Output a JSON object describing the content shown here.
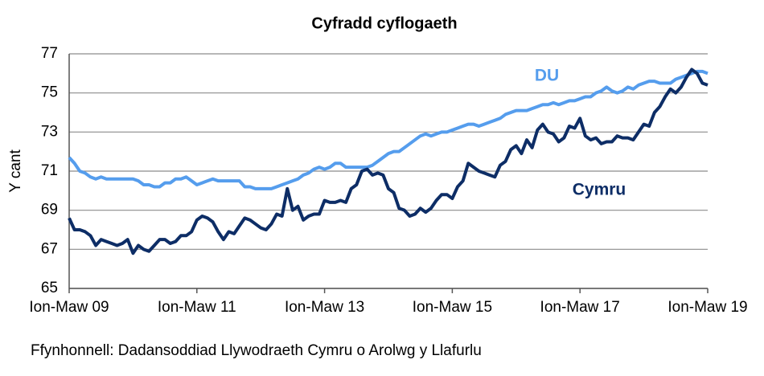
{
  "chart_data": {
    "type": "line",
    "title": "Cyfradd cyflogaeth",
    "y_label": "Y cant",
    "source": "Ffynhonnell: Dadansoddiad Llywodraeth Cymru o Arolwg y Llafurlu",
    "categories": [
      "Ion-Maw 09",
      null,
      null,
      null,
      null,
      null,
      null,
      null,
      null,
      null,
      null,
      null,
      null,
      null,
      null,
      null,
      null,
      null,
      null,
      null,
      null,
      null,
      null,
      null,
      "Ion-Maw 11",
      null,
      null,
      null,
      null,
      null,
      null,
      null,
      null,
      null,
      null,
      null,
      null,
      null,
      null,
      null,
      null,
      null,
      null,
      null,
      null,
      null,
      null,
      null,
      "Ion-Maw 13",
      null,
      null,
      null,
      null,
      null,
      null,
      null,
      null,
      null,
      null,
      null,
      null,
      null,
      null,
      null,
      null,
      null,
      null,
      null,
      null,
      null,
      null,
      null,
      "Ion-Maw 15",
      null,
      null,
      null,
      null,
      null,
      null,
      null,
      null,
      null,
      null,
      null,
      null,
      null,
      null,
      null,
      null,
      null,
      null,
      null,
      null,
      null,
      null,
      null,
      "Ion-Maw 17",
      null,
      null,
      null,
      null,
      null,
      null,
      null,
      null,
      null,
      null,
      null,
      null,
      null,
      null,
      null,
      null,
      null,
      null,
      null,
      null,
      null,
      null,
      null,
      "Ion-Maw 19"
    ],
    "series": [
      {
        "name": "DU",
        "color": "#559ded",
        "values": [
          71.7,
          71.4,
          71.0,
          70.9,
          70.7,
          70.6,
          70.7,
          70.6,
          70.6,
          70.6,
          70.6,
          70.6,
          70.6,
          70.5,
          70.3,
          70.3,
          70.2,
          70.2,
          70.4,
          70.4,
          70.6,
          70.6,
          70.7,
          70.5,
          70.3,
          70.4,
          70.5,
          70.6,
          70.5,
          70.5,
          70.5,
          70.5,
          70.5,
          70.2,
          70.2,
          70.1,
          70.1,
          70.1,
          70.1,
          70.2,
          70.3,
          70.4,
          70.5,
          70.6,
          70.8,
          70.9,
          71.1,
          71.2,
          71.1,
          71.2,
          71.4,
          71.4,
          71.2,
          71.2,
          71.2,
          71.2,
          71.2,
          71.3,
          71.5,
          71.7,
          71.9,
          72.0,
          72.0,
          72.2,
          72.4,
          72.6,
          72.8,
          72.9,
          72.8,
          72.9,
          73.0,
          73.0,
          73.1,
          73.2,
          73.3,
          73.4,
          73.4,
          73.3,
          73.4,
          73.5,
          73.6,
          73.7,
          73.9,
          74.0,
          74.1,
          74.1,
          74.1,
          74.2,
          74.3,
          74.4,
          74.4,
          74.5,
          74.4,
          74.5,
          74.6,
          74.6,
          74.7,
          74.8,
          74.8,
          75.0,
          75.1,
          75.3,
          75.1,
          75.0,
          75.1,
          75.3,
          75.2,
          75.4,
          75.5,
          75.6,
          75.6,
          75.5,
          75.5,
          75.5,
          75.7,
          75.8,
          75.9,
          76.0,
          76.1,
          76.1,
          76.0
        ]
      },
      {
        "name": "Cymru",
        "color": "#0d2d66",
        "values": [
          68.6,
          68.0,
          68.0,
          67.9,
          67.7,
          67.2,
          67.5,
          67.4,
          67.3,
          67.2,
          67.3,
          67.5,
          66.8,
          67.2,
          67.0,
          66.9,
          67.2,
          67.5,
          67.5,
          67.3,
          67.4,
          67.7,
          67.7,
          67.9,
          68.5,
          68.7,
          68.6,
          68.4,
          67.9,
          67.5,
          67.9,
          67.8,
          68.2,
          68.6,
          68.5,
          68.3,
          68.1,
          68.0,
          68.3,
          68.8,
          68.7,
          70.1,
          69.0,
          69.2,
          68.5,
          68.7,
          68.8,
          68.8,
          69.5,
          69.4,
          69.4,
          69.5,
          69.4,
          70.1,
          70.3,
          71.0,
          71.1,
          70.8,
          70.9,
          70.8,
          70.1,
          69.9,
          69.1,
          69.0,
          68.7,
          68.8,
          69.1,
          68.9,
          69.1,
          69.5,
          69.8,
          69.8,
          69.6,
          70.2,
          70.5,
          71.4,
          71.2,
          71.0,
          70.9,
          70.8,
          70.7,
          71.3,
          71.5,
          72.1,
          72.3,
          71.9,
          72.6,
          72.2,
          73.1,
          73.4,
          73.0,
          72.9,
          72.5,
          72.7,
          73.3,
          73.2,
          73.7,
          72.8,
          72.6,
          72.7,
          72.4,
          72.5,
          72.5,
          72.8,
          72.7,
          72.7,
          72.6,
          73.0,
          73.4,
          73.3,
          74.0,
          74.3,
          74.8,
          75.2,
          75.0,
          75.3,
          75.8,
          76.2,
          76.0,
          75.5,
          75.4
        ]
      }
    ],
    "ylim": [
      65,
      77
    ],
    "yticks": [
      65,
      67,
      69,
      71,
      73,
      75,
      77
    ],
    "grid": true
  }
}
